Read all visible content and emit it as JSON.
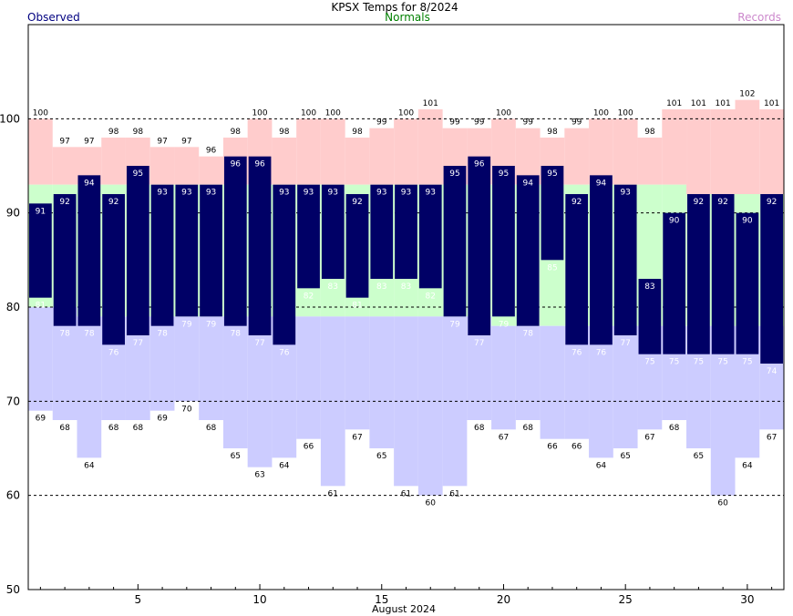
{
  "chart_data": {
    "type": "bar",
    "title": "KPSX Temps for 8/2024",
    "legend": {
      "observed": "Observed",
      "normals": "Normals",
      "records": "Records"
    },
    "xlabel": "August 2024",
    "ylim": [
      50,
      110
    ],
    "yticks": [
      50,
      60,
      70,
      80,
      90,
      100
    ],
    "xticks": [
      5,
      10,
      15,
      20,
      25,
      30
    ],
    "colors": {
      "observed": "#000066",
      "normals": "#ccffcc",
      "record_high": "#ffcccc",
      "record_low": "#ccccff",
      "observed_text": "#000080",
      "normals_text": "#008000",
      "records_text": "#cc88cc"
    },
    "days": [
      1,
      2,
      3,
      4,
      5,
      6,
      7,
      8,
      9,
      10,
      11,
      12,
      13,
      14,
      15,
      16,
      17,
      18,
      19,
      20,
      21,
      22,
      23,
      24,
      25,
      26,
      27,
      28,
      29,
      30,
      31
    ],
    "observed_high": [
      91,
      92,
      94,
      92,
      95,
      93,
      93,
      93,
      96,
      96,
      93,
      93,
      93,
      92,
      93,
      93,
      93,
      95,
      96,
      95,
      94,
      95,
      92,
      94,
      93,
      83,
      90,
      92,
      92,
      90,
      92
    ],
    "observed_low": [
      81,
      78,
      78,
      76,
      77,
      78,
      79,
      79,
      78,
      77,
      76,
      82,
      83,
      81,
      83,
      83,
      82,
      79,
      77,
      79,
      78,
      85,
      76,
      76,
      77,
      75,
      75,
      75,
      75,
      75,
      74
    ],
    "normal_high": [
      93,
      93,
      93,
      93,
      93,
      93,
      93,
      93,
      93,
      93,
      93,
      93,
      93,
      93,
      93,
      93,
      93,
      93,
      93,
      93,
      93,
      93,
      93,
      93,
      93,
      93,
      93,
      92,
      92,
      92,
      92
    ],
    "normal_low": [
      80,
      80,
      79,
      79,
      79,
      79,
      79,
      79,
      79,
      79,
      79,
      79,
      79,
      79,
      79,
      79,
      79,
      79,
      79,
      78,
      78,
      78,
      78,
      78,
      78,
      78,
      78,
      78,
      78,
      78,
      78
    ],
    "record_high": [
      100,
      97,
      97,
      98,
      98,
      97,
      97,
      96,
      98,
      100,
      98,
      100,
      100,
      98,
      99,
      100,
      101,
      99,
      99,
      100,
      99,
      98,
      99,
      100,
      100,
      98,
      101,
      101,
      101,
      102,
      101
    ],
    "record_low": [
      69,
      68,
      64,
      68,
      68,
      69,
      70,
      68,
      65,
      63,
      64,
      66,
      61,
      67,
      65,
      61,
      60,
      61,
      68,
      67,
      68,
      66,
      66,
      64,
      65,
      67,
      68,
      65,
      60,
      64,
      67
    ]
  }
}
